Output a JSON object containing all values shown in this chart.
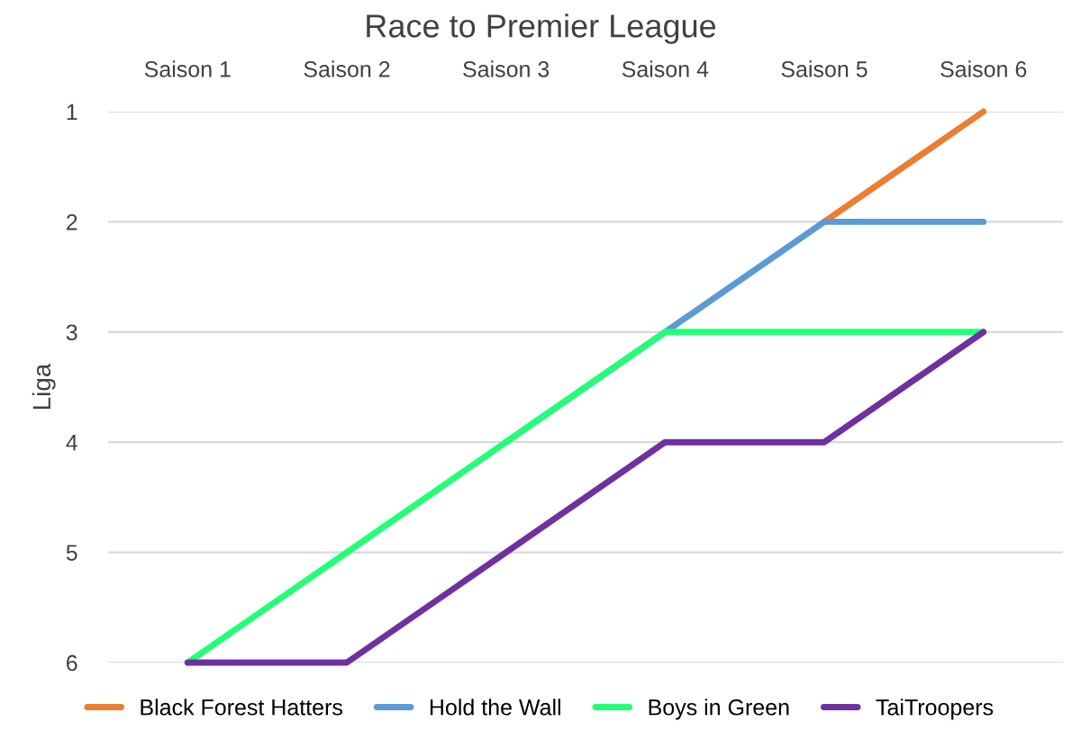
{
  "chart_data": {
    "type": "line",
    "title": "Race to Premier League",
    "ylabel": "Liga",
    "categories": [
      "Saison 1",
      "Saison 2",
      "Saison 3",
      "Saison 4",
      "Saison 5",
      "Saison 6"
    ],
    "series": [
      {
        "name": "Black Forest Hatters",
        "color": "#ed7d31",
        "values": [
          null,
          null,
          null,
          null,
          2,
          1
        ]
      },
      {
        "name": "Hold the Wall",
        "color": "#5b9bd5",
        "values": [
          null,
          null,
          4,
          3,
          2,
          2
        ]
      },
      {
        "name": "Boys in Green",
        "color": "#22ff77",
        "values": [
          6,
          5,
          4,
          3,
          3,
          3
        ]
      },
      {
        "name": "TaiTroopers",
        "color": "#7030a0",
        "values": [
          6,
          6,
          5,
          4,
          4,
          3
        ]
      }
    ],
    "ylim": [
      6,
      1
    ],
    "yticks": [
      1,
      2,
      3,
      4,
      5,
      6
    ],
    "grid": "y",
    "legend": "bottom",
    "marker": "none",
    "line_style": "solid"
  }
}
